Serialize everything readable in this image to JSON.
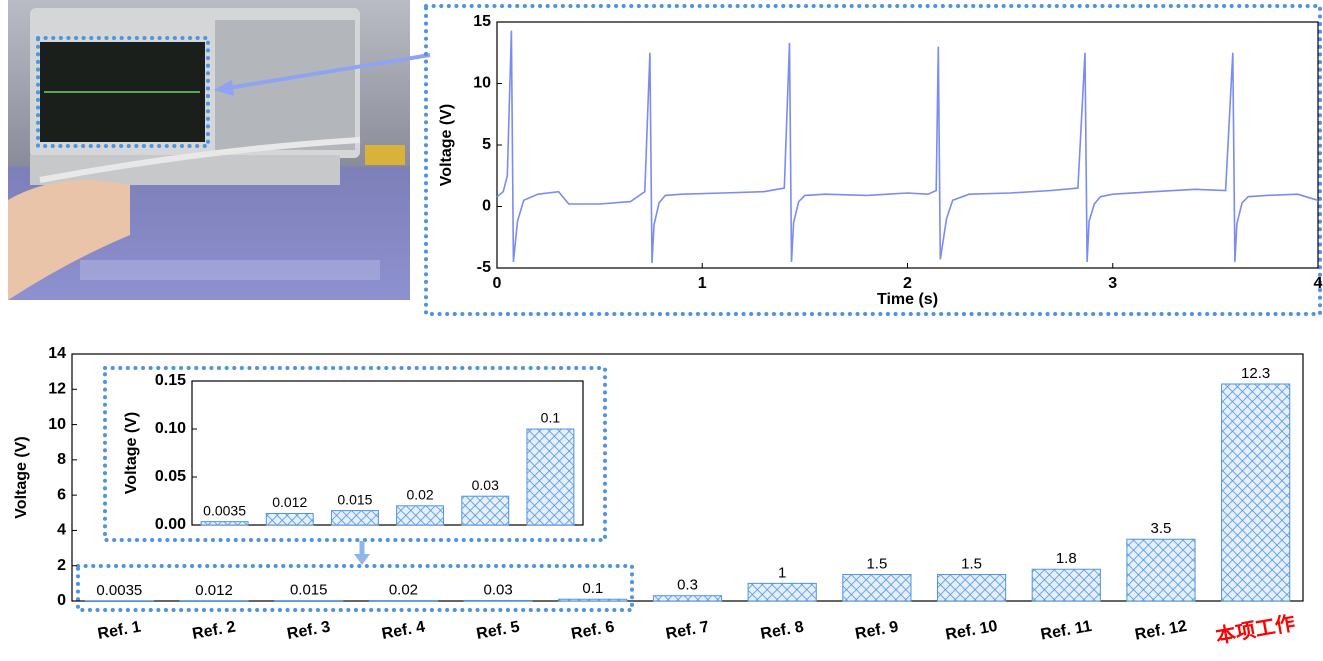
{
  "chart_data": [
    {
      "type": "line",
      "xlabel": "Time (s)",
      "ylabel": "Voltage (V)",
      "color": "#7b8cf0",
      "x": [
        0,
        0.03,
        0.05,
        0.07,
        0.08,
        0.1,
        0.13,
        0.2,
        0.3,
        0.35,
        0.5,
        0.65,
        0.72,
        0.745,
        0.755,
        0.765,
        0.79,
        0.82,
        0.9,
        1.1,
        1.3,
        1.4,
        1.425,
        1.435,
        1.445,
        1.47,
        1.5,
        1.6,
        1.8,
        2.0,
        2.1,
        2.14,
        2.15,
        2.16,
        2.19,
        2.22,
        2.3,
        2.5,
        2.7,
        2.83,
        2.865,
        2.875,
        2.885,
        2.91,
        2.94,
        3.0,
        3.2,
        3.4,
        3.55,
        3.585,
        3.595,
        3.605,
        3.63,
        3.66,
        3.75,
        3.9,
        4.0
      ],
      "values": [
        0.8,
        1.2,
        2.5,
        14.3,
        -4.5,
        -1.2,
        0.5,
        1.0,
        1.2,
        0.2,
        0.2,
        0.4,
        1.2,
        12.5,
        -4.6,
        -1.5,
        0.3,
        0.9,
        1.0,
        1.1,
        1.2,
        1.5,
        13.3,
        -4.5,
        -1.3,
        0.4,
        0.9,
        1.0,
        0.9,
        1.1,
        1.0,
        1.3,
        13.0,
        -4.3,
        -1.0,
        0.5,
        1.0,
        1.1,
        1.3,
        1.5,
        12.5,
        -4.5,
        -1.2,
        0.2,
        0.8,
        1.0,
        1.2,
        1.4,
        1.3,
        12.5,
        -4.5,
        -1.4,
        0.3,
        0.8,
        0.9,
        1.0,
        0.5
      ],
      "xlim": [
        0,
        4
      ],
      "ylim": [
        -5,
        15
      ],
      "xticks": [
        0,
        1,
        2,
        3,
        4
      ],
      "yticks": [
        -5,
        0,
        5,
        10,
        15
      ]
    },
    {
      "type": "bar",
      "ylabel": "Voltage (V)",
      "color": "#4f94e0",
      "categories": [
        "Ref. 1",
        "Ref. 2",
        "Ref. 3",
        "Ref. 4",
        "Ref. 5",
        "Ref. 6",
        "Ref. 7",
        "Ref. 8",
        "Ref. 9",
        "Ref. 10",
        "Ref. 11",
        "Ref. 12",
        "本项工作"
      ],
      "category_label_colors": [
        "#000000",
        "#000000",
        "#000000",
        "#000000",
        "#000000",
        "#000000",
        "#000000",
        "#000000",
        "#000000",
        "#000000",
        "#000000",
        "#000000",
        "#ff0000"
      ],
      "values": [
        0.0035,
        0.012,
        0.015,
        0.02,
        0.03,
        0.1,
        0.3,
        1,
        1.5,
        1.5,
        1.8,
        3.5,
        12.3
      ],
      "ylim": [
        0,
        14
      ],
      "yticks": [
        0,
        2,
        4,
        6,
        8,
        10,
        12,
        14
      ]
    },
    {
      "type": "bar",
      "ylabel": "Voltage (V)",
      "color": "#4f94e0",
      "values": [
        0.0035,
        0.012,
        0.015,
        0.02,
        0.03,
        0.1
      ],
      "ylim": [
        0,
        0.15
      ],
      "yticks": [
        {
          "value": 0,
          "label": "0.00"
        },
        {
          "value": 0.05,
          "label": "0.05"
        },
        {
          "value": 0.1,
          "label": "0.10"
        },
        {
          "value": 0.15,
          "label": "0.15"
        }
      ]
    }
  ]
}
